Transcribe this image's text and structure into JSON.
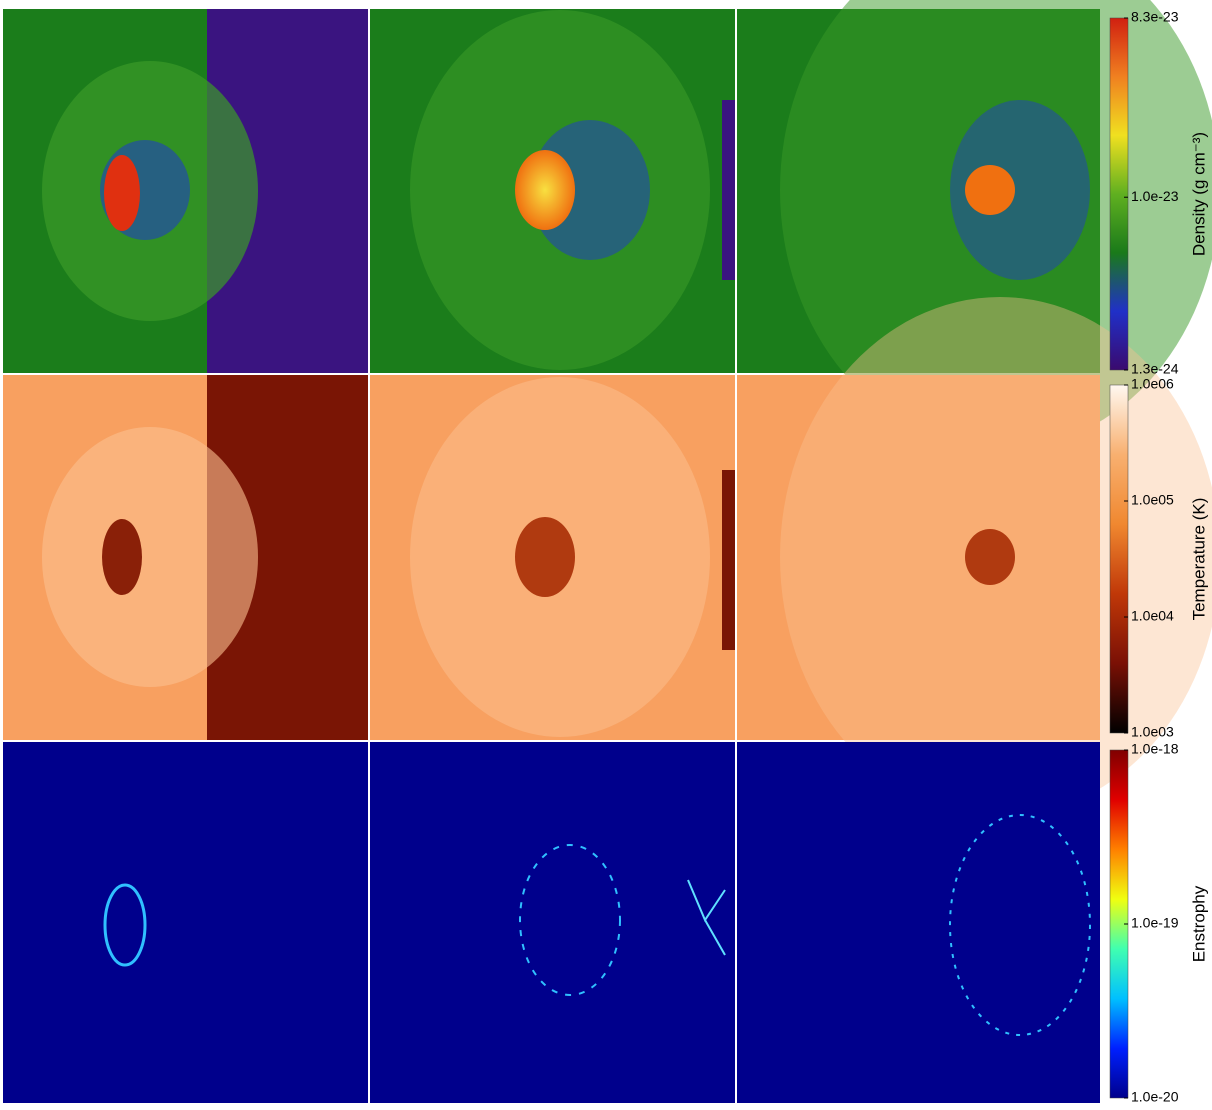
{
  "colorbars": [
    {
      "label": "Density (g cm⁻³)",
      "scale": "log",
      "lim": [
        1.3e-24,
        8.3e-23
      ],
      "ticks": [
        8.3e-23,
        {
          "value": 1e-23,
          "label": "1.0e-23"
        },
        1.3e-24
      ],
      "colors": [
        "#3a0a6e",
        "#2030c8",
        "#1a7a1a",
        "#60b020",
        "#f0e020",
        "#f08020",
        "#d02010"
      ]
    },
    {
      "label": "Temperature (K)",
      "scale": "log",
      "lim": [
        1000,
        1000000
      ],
      "ticks": [
        {
          "value": 1000000,
          "label": "1.0e06"
        },
        {
          "value": 100000,
          "label": "1.0e05"
        },
        {
          "value": 10000,
          "label": "1.0e04"
        },
        {
          "value": 1000,
          "label": "1.0e03"
        }
      ],
      "colors": [
        "#000000",
        "#7a1005",
        "#c03808",
        "#f08830",
        "#f8b070",
        "#fff8f0"
      ]
    },
    {
      "label": "Enstrophy",
      "scale": "log",
      "lim": [
        1e-20,
        1e-18
      ],
      "ticks": [
        {
          "value": 1e-18,
          "label": "1.0e-18"
        },
        {
          "value": 1e-19,
          "label": "1.0e-19"
        },
        {
          "value": 1e-20,
          "label": "1.0e-20"
        }
      ],
      "colors": [
        "#00008c",
        "#0020ff",
        "#00c0ff",
        "#40ffb0",
        "#f0ff10",
        "#ff8000",
        "#e00000",
        "#800000"
      ]
    }
  ]
}
